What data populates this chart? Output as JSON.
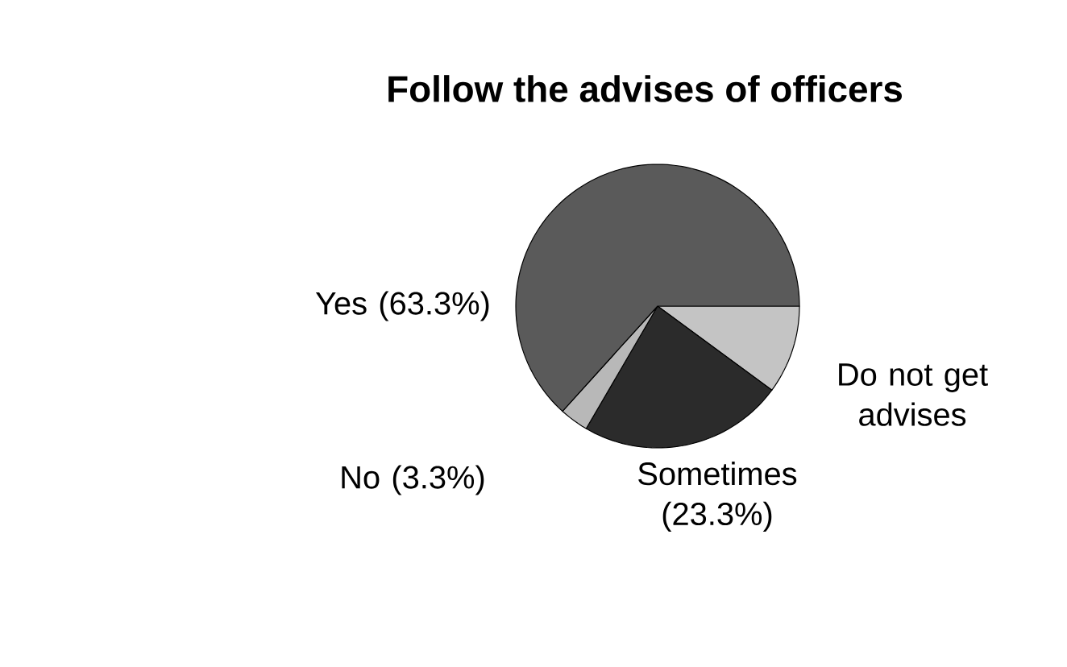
{
  "chart_data": {
    "type": "pie",
    "title": "Follow the advises of officers",
    "categories": [
      "Do not get advises",
      "Sometimes",
      "No",
      "Yes"
    ],
    "values": [
      10.1,
      23.3,
      3.3,
      63.3
    ],
    "value_labels": [
      null,
      "(23.3%)",
      "(3.3%)",
      "(63.3%)"
    ],
    "colors": [
      "#c4c4c4",
      "#2b2b2b",
      "#b8b8b8",
      "#5a5a5a"
    ]
  }
}
